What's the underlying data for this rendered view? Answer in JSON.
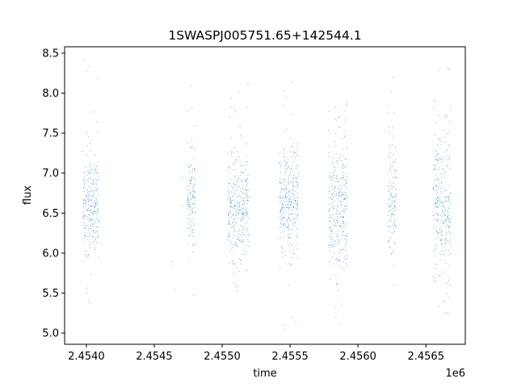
{
  "chart_data": {
    "type": "scatter",
    "title": "1SWASPJ005751.65+142544.1",
    "xlabel": "time",
    "ylabel": "flux",
    "x_offset_label": "1e6",
    "xlim": [
      2.45384,
      2.45679
    ],
    "ylim": [
      4.86,
      8.58
    ],
    "x_ticks": [
      2.454,
      2.4545,
      2.455,
      2.4555,
      2.456,
      2.4565
    ],
    "x_tick_labels": [
      "2.4540",
      "2.4545",
      "2.4550",
      "2.4555",
      "2.4560",
      "2.4565"
    ],
    "y_ticks": [
      5.0,
      5.5,
      6.0,
      6.5,
      7.0,
      7.5,
      8.0,
      8.5
    ],
    "y_tick_labels": [
      "5.0",
      "5.5",
      "6.0",
      "6.5",
      "7.0",
      "7.5",
      "8.0",
      "8.5"
    ],
    "grid": false,
    "point_color": "#1f77b4",
    "observing_seasons": [
      {
        "x_start": 2.45397,
        "x_end": 2.45409,
        "y_low": 5.9,
        "y_high": 7.3,
        "y_min": 5.05,
        "y_max": 8.45
      },
      {
        "x_start": 2.45474,
        "x_end": 2.4548,
        "y_low": 6.1,
        "y_high": 7.2,
        "y_min": 5.4,
        "y_max": 8.3
      },
      {
        "x_start": 2.45504,
        "x_end": 2.45519,
        "y_low": 5.95,
        "y_high": 7.25,
        "y_min": 5.05,
        "y_max": 8.4
      },
      {
        "x_start": 2.45542,
        "x_end": 2.45556,
        "y_low": 6.0,
        "y_high": 7.3,
        "y_min": 5.02,
        "y_max": 8.35
      },
      {
        "x_start": 2.45578,
        "x_end": 2.45592,
        "y_low": 5.7,
        "y_high": 7.6,
        "y_min": 5.02,
        "y_max": 8.42
      },
      {
        "x_start": 2.45622,
        "x_end": 2.45628,
        "y_low": 5.9,
        "y_high": 7.4,
        "y_min": 5.05,
        "y_max": 8.4
      },
      {
        "x_start": 2.45655,
        "x_end": 2.45668,
        "y_low": 5.7,
        "y_high": 7.5,
        "y_min": 5.05,
        "y_max": 8.4
      }
    ]
  }
}
